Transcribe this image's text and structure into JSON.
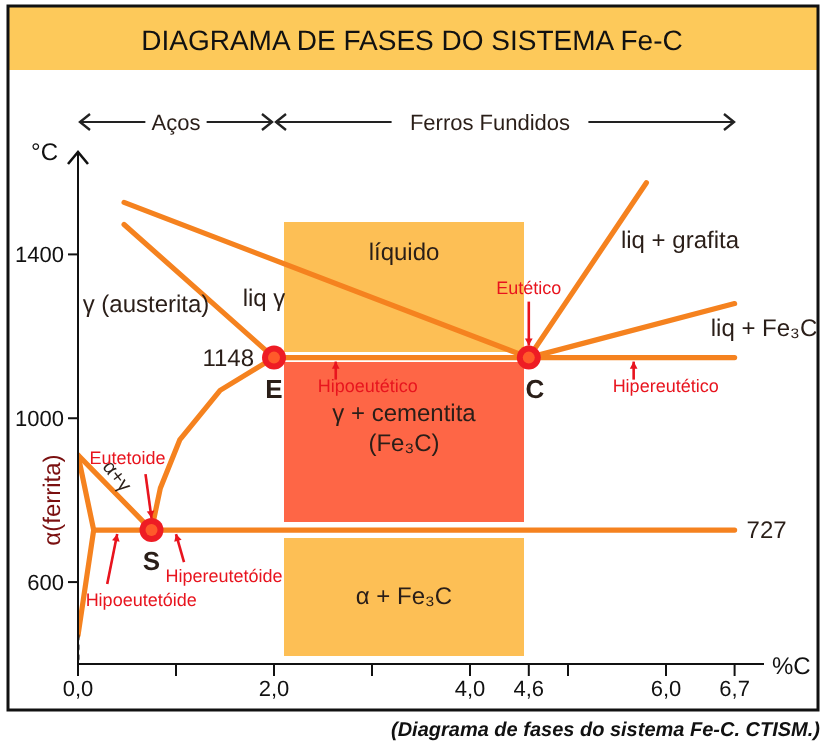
{
  "chart_data": {
    "type": "line",
    "title": "DIAGRAMA DE FASES DO SISTEMA Fe-C",
    "xlabel": "%C",
    "ylabel": "°C",
    "xlim": [
      0,
      7
    ],
    "ylim": [
      400,
      1650
    ],
    "xticks": [
      {
        "value": 0,
        "label": "0,0"
      },
      {
        "value": 1,
        "label": null
      },
      {
        "value": 2,
        "label": "2,0"
      },
      {
        "value": 3,
        "label": null
      },
      {
        "value": 4,
        "label": "4,0"
      },
      {
        "value": 4.6,
        "label": "4,6"
      },
      {
        "value": 5,
        "label": null
      },
      {
        "value": 6,
        "label": "6,0"
      },
      {
        "value": 6.7,
        "label": "6,7"
      }
    ],
    "yticks": [
      600,
      1000,
      1400
    ],
    "series": [
      {
        "color": "#f5821f",
        "x": [
          0.47,
          4.6
        ],
        "values": [
          1527,
          1148
        ]
      },
      {
        "color": "#f5821f",
        "x": [
          0.47,
          2.0
        ],
        "values": [
          1473,
          1148
        ]
      },
      {
        "color": "#f5821f",
        "x": [
          2.0,
          6.7
        ],
        "values": [
          1148,
          1148
        ]
      },
      {
        "color": "#f5821f",
        "x": [
          4.6,
          5.8
        ],
        "values": [
          1148,
          1575
        ]
      },
      {
        "color": "#f5821f",
        "x": [
          4.6,
          6.7
        ],
        "values": [
          1148,
          1280
        ]
      },
      {
        "color": "#f5821f",
        "x": [
          2.0,
          1.45,
          1.04,
          0.84,
          0.75
        ],
        "values": [
          1148,
          1068,
          948,
          829,
          727
        ]
      },
      {
        "color": "#f5821f",
        "x": [
          0.16,
          6.7
        ],
        "values": [
          727,
          727
        ]
      },
      {
        "color": "#f5821f",
        "x": [
          0,
          0.75
        ],
        "values": [
          910,
          727
        ]
      },
      {
        "color": "#f5821f",
        "x": [
          0,
          0.16,
          0
        ],
        "values": [
          910,
          727,
          470
        ]
      },
      {
        "color": "#222222",
        "line_style": "dotted",
        "x": [
          0,
          0
        ],
        "values": [
          470,
          410
        ]
      },
      {
        "type": "scatter",
        "marker": "circle",
        "color": "#ee1c24",
        "x": [
          2.0,
          4.6,
          0.75
        ],
        "values": [
          1148,
          1148,
          727
        ]
      }
    ],
    "annotations": [
      "Aços",
      "Ferros Fundidos",
      "γ (austerita)",
      "liq γ",
      "liq + grafita",
      "liq + Fe₃C",
      "α(ferrita)",
      "α+γ",
      "líquido",
      "γ + cementita (Fe₃C)",
      "α + Fe₃C",
      {
        "text": "1148",
        "x": 2.0,
        "y": 1148
      },
      {
        "text": "E",
        "x": 2.0,
        "y": 1148
      },
      {
        "text": "C",
        "x": 4.6,
        "y": 1148
      },
      {
        "text": "S",
        "x": 0.75,
        "y": 727
      },
      {
        "text": "727",
        "x": 6.7,
        "y": 727
      },
      {
        "text": "Eutético",
        "x": 4.6,
        "y": 1148
      },
      {
        "text": "Hipoeutético",
        "x": 2.63,
        "y": 1148
      },
      {
        "text": "Hipereutético",
        "x": 5.67,
        "y": 1148
      },
      {
        "text": "Eutetoide",
        "x": 0.75,
        "y": 727
      },
      {
        "text": "Hipoeutetóide",
        "x": 0.4,
        "y": 727
      },
      {
        "text": "Hipereutetóide",
        "x": 1.0,
        "y": 727
      },
      "(Diagrama de fases do sistema Fe-C. CTISM.)"
    ]
  }
}
